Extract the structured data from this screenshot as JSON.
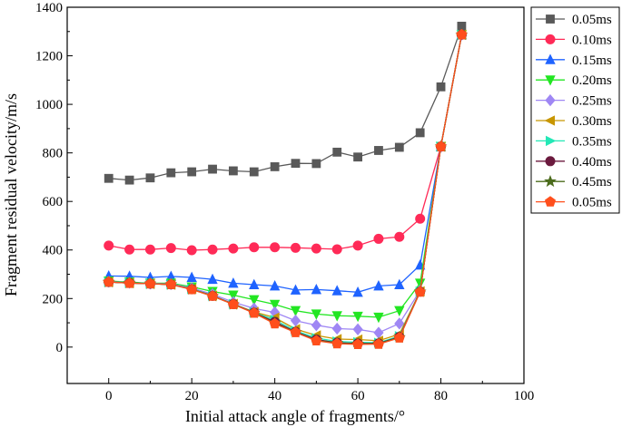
{
  "chart_data": {
    "type": "line",
    "title": "",
    "xlabel": "Initial attack angle of fragments/°",
    "ylabel": "Fragment residual velocity/m/s",
    "xlim": [
      -10,
      100
    ],
    "ylim": [
      -150,
      1400
    ],
    "xticks": [
      0,
      20,
      40,
      60,
      80,
      100
    ],
    "yticks": [
      0,
      200,
      400,
      600,
      800,
      1000,
      1200,
      1400
    ],
    "x": [
      0,
      5,
      10,
      15,
      20,
      25,
      30,
      35,
      40,
      45,
      50,
      55,
      60,
      65,
      70,
      75,
      80,
      85
    ],
    "legend_position": "right",
    "series": [
      {
        "name": "0.05ms",
        "color": "#595959",
        "marker": "square",
        "values": [
          695,
          688,
          697,
          718,
          722,
          733,
          726,
          722,
          743,
          757,
          756,
          803,
          783,
          810,
          823,
          883,
          1072,
          1322
        ]
      },
      {
        "name": "0.10ms",
        "color": "#ff2a57",
        "marker": "circle",
        "values": [
          418,
          402,
          402,
          408,
          399,
          402,
          406,
          411,
          411,
          409,
          406,
          403,
          418,
          446,
          454,
          529,
          826,
          1287
        ]
      },
      {
        "name": "0.15ms",
        "color": "#1f63ff",
        "marker": "triangle-up",
        "values": [
          293,
          292,
          287,
          291,
          287,
          279,
          263,
          257,
          252,
          235,
          237,
          232,
          226,
          252,
          257,
          338,
          826,
          1287
        ]
      },
      {
        "name": "0.20ms",
        "color": "#22e622",
        "marker": "triangle-down",
        "values": [
          272,
          268,
          263,
          263,
          248,
          229,
          214,
          195,
          176,
          150,
          136,
          129,
          127,
          123,
          150,
          263,
          826,
          1287
        ]
      },
      {
        "name": "0.25ms",
        "color": "#9f87f4",
        "marker": "diamond",
        "values": [
          270,
          265,
          262,
          260,
          243,
          218,
          185,
          159,
          143,
          109,
          90,
          76,
          73,
          59,
          97,
          233,
          826,
          1287
        ]
      },
      {
        "name": "0.30ms",
        "color": "#c89600",
        "marker": "triangle-left",
        "values": [
          268,
          264,
          261,
          258,
          240,
          212,
          178,
          145,
          121,
          74,
          48,
          33,
          31,
          26,
          53,
          230,
          826,
          1287
        ]
      },
      {
        "name": "0.35ms",
        "color": "#23e8b6",
        "marker": "triangle-right",
        "values": [
          268,
          264,
          261,
          258,
          239,
          212,
          178,
          143,
          112,
          67,
          37,
          23,
          20,
          18,
          45,
          229,
          826,
          1287
        ]
      },
      {
        "name": "0.40ms",
        "color": "#6b1a3e",
        "marker": "circle",
        "values": [
          268,
          264,
          261,
          258,
          238,
          211,
          177,
          142,
          104,
          63,
          31,
          18,
          15,
          15,
          42,
          228,
          826,
          1287
        ]
      },
      {
        "name": "0.45ms",
        "color": "#4b6b1c",
        "marker": "star",
        "values": [
          268,
          264,
          261,
          258,
          238,
          210,
          176,
          141,
          99,
          61,
          28,
          16,
          13,
          14,
          40,
          228,
          826,
          1287
        ]
      },
      {
        "name": "0.05ms",
        "color": "#ff4f1c",
        "marker": "pentagon",
        "values": [
          268,
          263,
          261,
          258,
          237,
          210,
          176,
          140,
          96,
          60,
          26,
          14,
          11,
          12,
          38,
          227,
          826,
          1287
        ]
      }
    ]
  }
}
